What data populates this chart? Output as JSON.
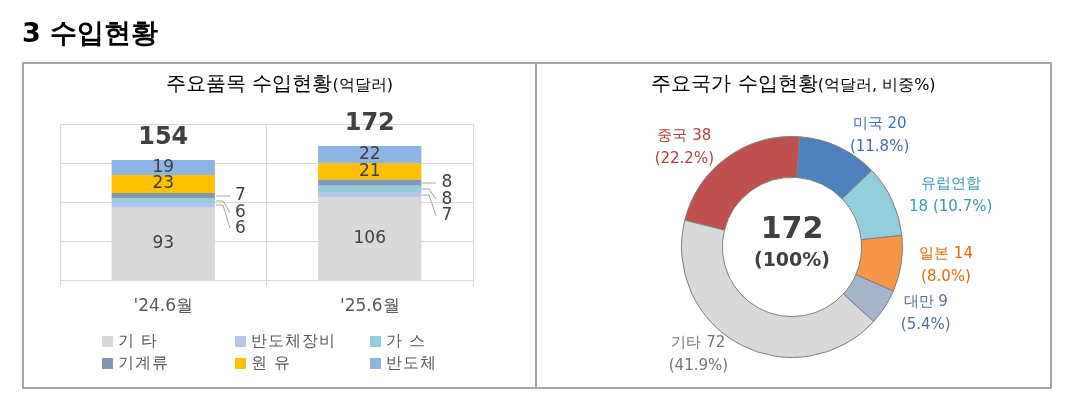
{
  "chart_data": [
    {
      "type": "other",
      "title": "3 수입현황"
    },
    {
      "type": "bar",
      "title": "주요품목 수입현황(억달러)",
      "categories": [
        "'24.6월",
        "'25.6월"
      ],
      "series": [
        {
          "name": "기 타",
          "color": "#d9d9d9",
          "values": [
            93,
            106
          ]
        },
        {
          "name": "반도체장비",
          "color": "#b4c7e7",
          "values": [
            6,
            7
          ]
        },
        {
          "name": "가 스",
          "color": "#92cddc",
          "values": [
            6,
            8
          ]
        },
        {
          "name": "기계류",
          "color": "#8497b0",
          "values": [
            7,
            8
          ]
        },
        {
          "name": "원 유",
          "color": "#ffc000",
          "values": [
            23,
            21
          ]
        },
        {
          "name": "반도체",
          "color": "#8db4e2",
          "values": [
            19,
            22
          ]
        }
      ],
      "stacked": true,
      "ylim": [
        0,
        200
      ],
      "tick_labels": "x",
      "grid": true,
      "legend": "bottom",
      "data_labels": true,
      "totals": [
        "154",
        "172"
      ]
    },
    {
      "type": "donut",
      "title": "주요국가 수입현황(억달러, 비중%)",
      "categories": [
        "중국",
        "미국",
        "유럽연합",
        "일본",
        "대만",
        "기타"
      ],
      "values": [
        38,
        20,
        18,
        14,
        9,
        72
      ],
      "colors": [
        "#c0504d",
        "#4f81bd",
        "#92cddc",
        "#f79646",
        "#a5b5cc",
        "#d9d9d9"
      ],
      "value_labels": [
        "38 (22.2%)",
        "20 (11.8%)",
        "18 (10.7%)",
        "14 (8.0%)",
        "9 (5.4%)",
        "72 (41.9%)"
      ],
      "annotations": [
        "172",
        "(100%)"
      ]
    }
  ]
}
